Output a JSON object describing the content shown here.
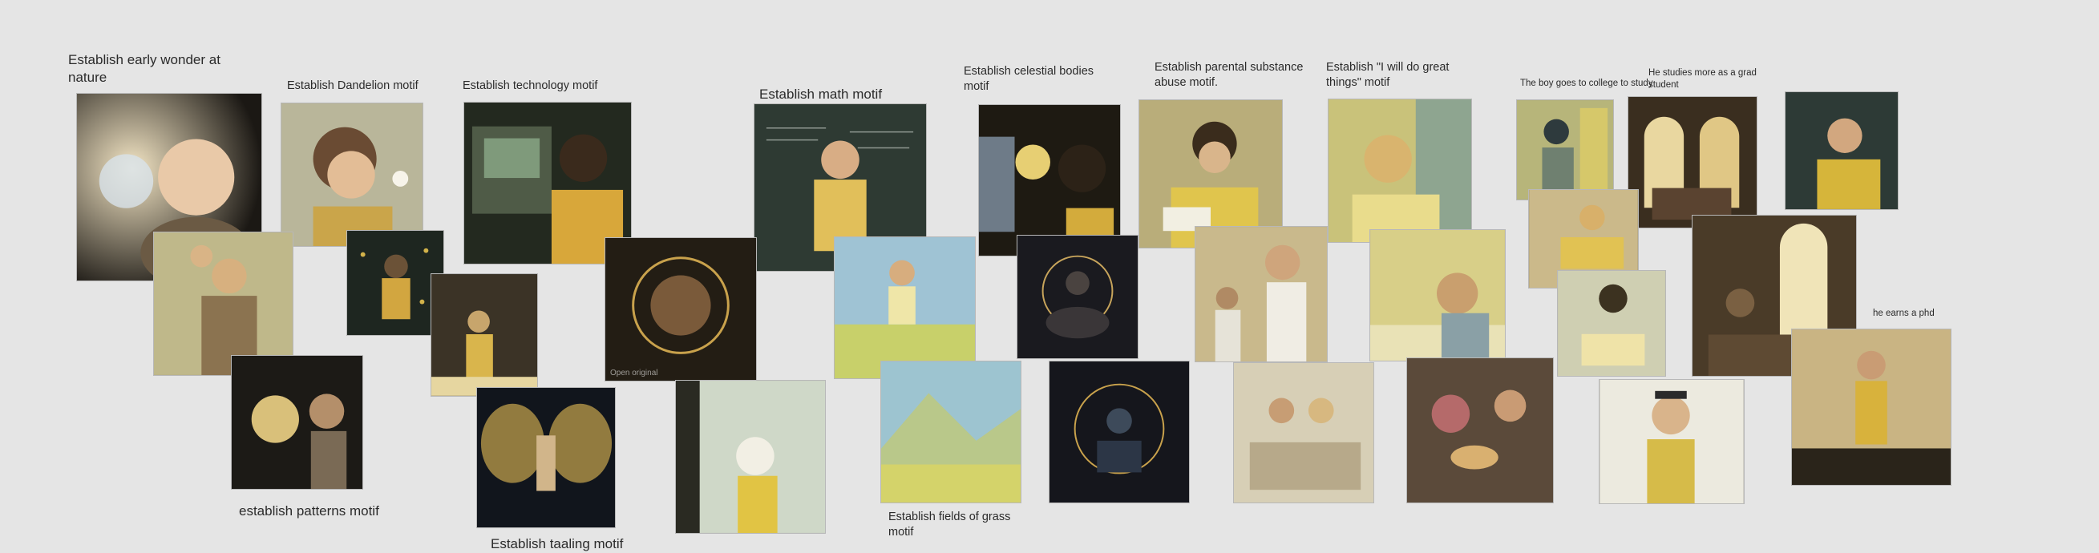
{
  "board": {
    "labels": {
      "early_wonder": "Establish early wonder at nature",
      "dandelion": "Establish Dandelion motif",
      "technology": "Establish technology motif",
      "math": "Establish math motif",
      "celestial": "Establish celestial bodies motif",
      "parental": "Establish parental substance abuse motif.",
      "great_things": "Establish \"I will do great things\" motif",
      "college": "The boy goes to college to study",
      "grad": "He studies more as a grad student",
      "phd": "he earns a phd",
      "patterns": "establish patterns motif",
      "grass": "Establish fields of grass motif",
      "cut_off": "Establish taaling motif",
      "open_original": "Open original"
    },
    "colors": {
      "background": "#e5e5e5",
      "accent_yellow": "#e8c63a"
    },
    "cards": [
      {
        "name": "baby-bubble-image",
        "icon": "baby-with-bubble"
      },
      {
        "name": "boy-dandelion-image",
        "icon": "boy-blowing-dandelion"
      },
      {
        "name": "boy-technology-image",
        "icon": "boy-at-workbench"
      },
      {
        "name": "boy-chalkboard-image",
        "icon": "boy-at-chalkboard"
      },
      {
        "name": "boy-moon-image",
        "icon": "boy-and-moon"
      },
      {
        "name": "boy-reading-image",
        "icon": "boy-reading-book"
      },
      {
        "name": "boy-looking-up-image",
        "icon": "boy-gazing-up"
      }
    ]
  }
}
